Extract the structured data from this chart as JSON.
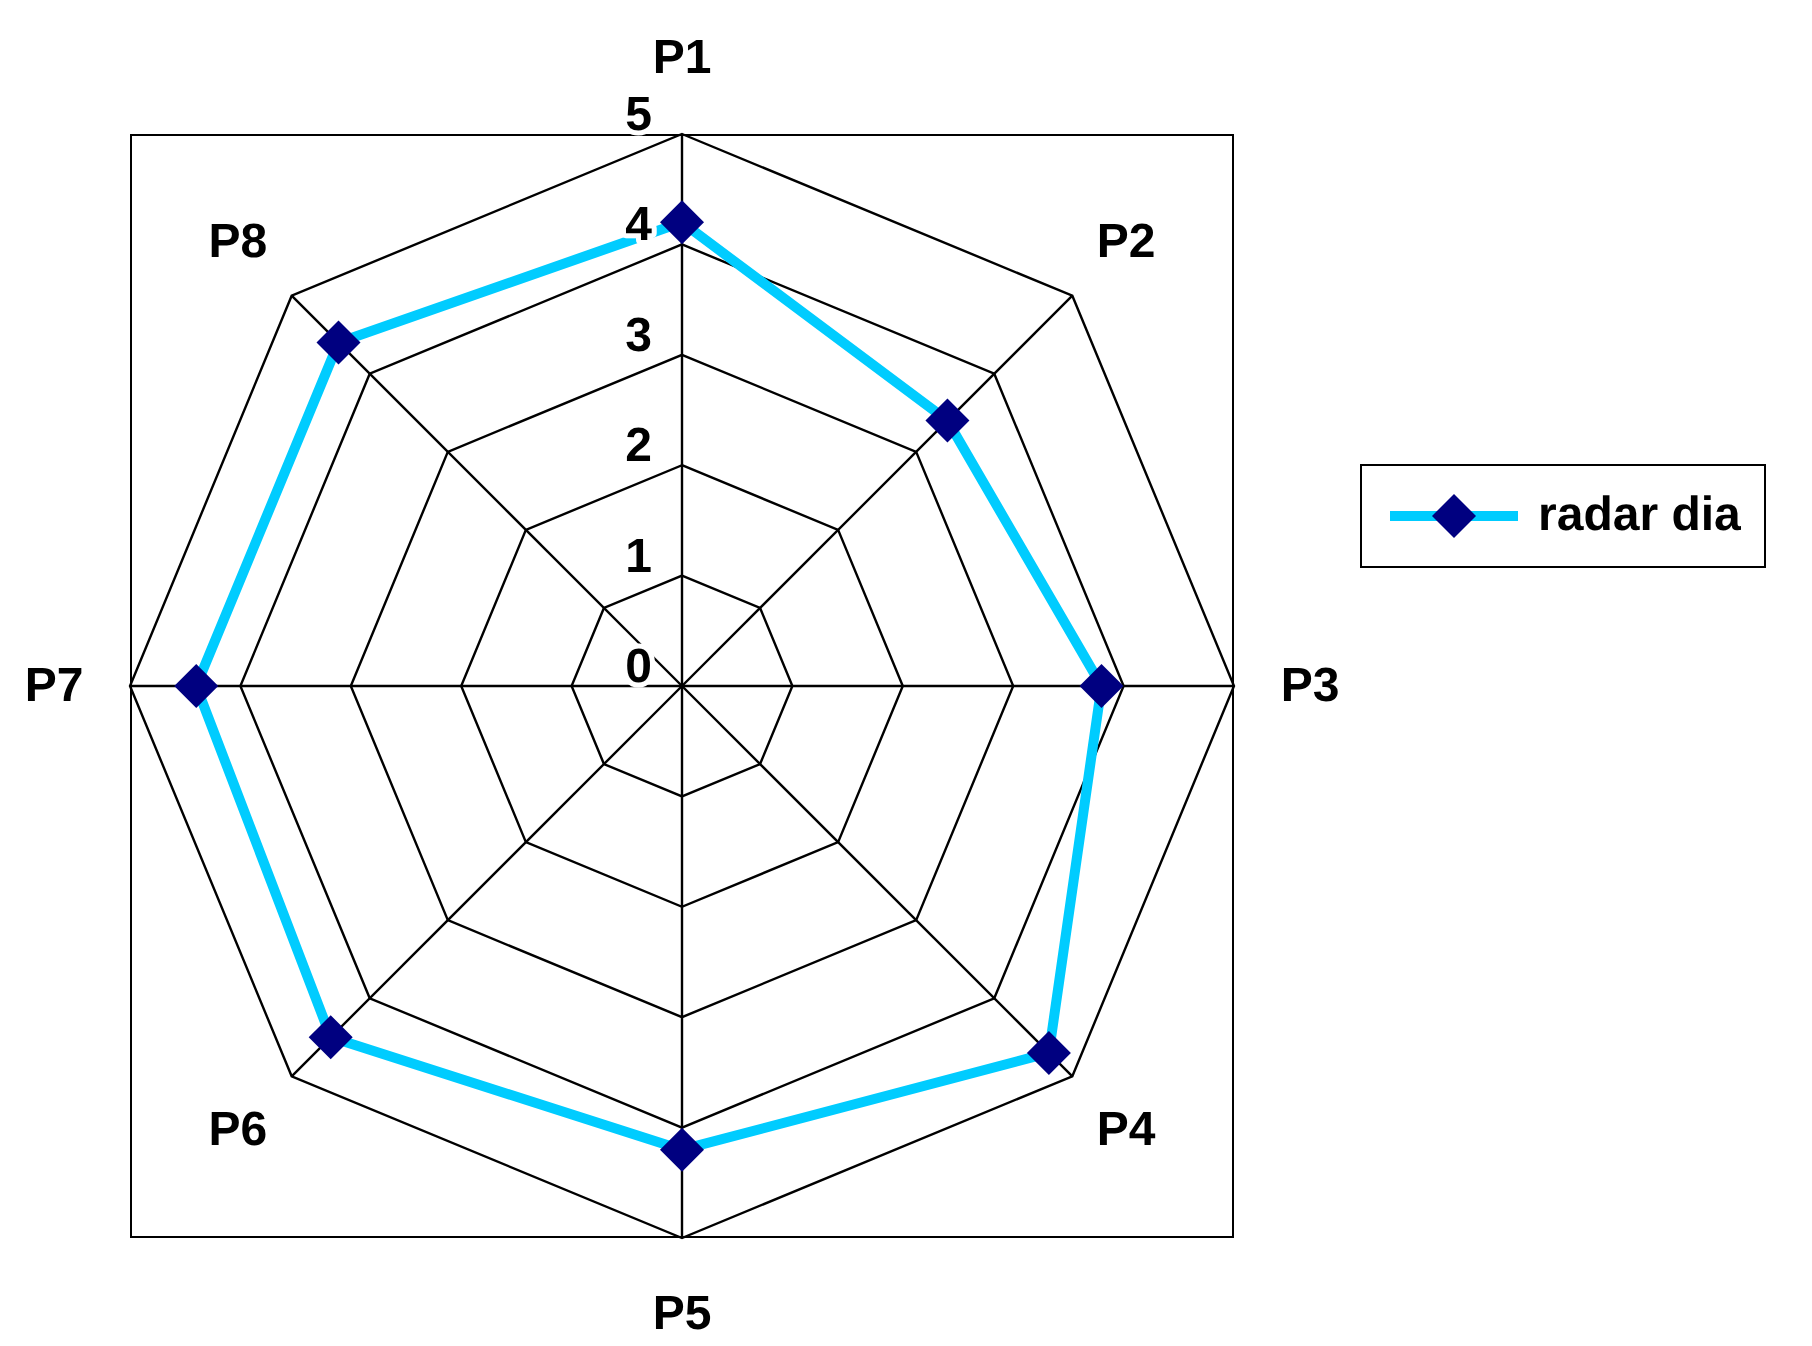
{
  "chart_data": {
    "type": "radar",
    "categories": [
      "P1",
      "P2",
      "P3",
      "P4",
      "P5",
      "P6",
      "P7",
      "P8"
    ],
    "series": [
      {
        "name": "radar dia",
        "color": "#00ccff",
        "values": [
          4.2,
          3.4,
          3.8,
          4.7,
          4.2,
          4.5,
          4.4,
          4.4
        ]
      }
    ],
    "ylim": [
      0,
      5
    ],
    "yticks": [
      0,
      1,
      2,
      3,
      4,
      5
    ],
    "grid": true,
    "legend": "right",
    "marker": "diamond",
    "line_style": "solid"
  }
}
